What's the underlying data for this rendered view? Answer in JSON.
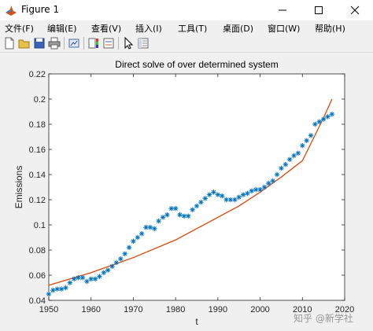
{
  "window": {
    "title": "Figure 1",
    "icon": "matlab-icon"
  },
  "window_controls": [
    "minimize-icon",
    "maximize-icon",
    "close-icon"
  ],
  "menu": [
    "文件(F)",
    "编辑(E)",
    "查看(V)",
    "插入(I)",
    "工具(T)",
    "桌面(D)",
    "窗口(W)",
    "帮助(H)"
  ],
  "toolbar": [
    "new-figure-icon",
    "open-file-icon",
    "save-icon",
    "print-icon",
    "link-plot-icon",
    "colorbar-icon",
    "legend-icon",
    "pointer-icon",
    "property-editor-icon"
  ],
  "watermark": "知乎 @新学社",
  "chart_data": {
    "type": "scatter",
    "title": "Direct solve of over determined system",
    "xlabel": "t",
    "ylabel": "Emissions",
    "xlim": [
      1950,
      2020
    ],
    "ylim": [
      0.04,
      0.22
    ],
    "xticks": [
      "1950",
      "1960",
      "1970",
      "1980",
      "1990",
      "2000",
      "2010",
      "2020"
    ],
    "yticks": [
      "0.04",
      "0.06",
      "0.08",
      "0.1",
      "0.12",
      "0.14",
      "0.16",
      "0.18",
      "0.2",
      "0.22"
    ],
    "grid": false,
    "series": [
      {
        "kind": "markers",
        "marker": "asterisk",
        "color": "#0072bd",
        "x": [
          1950,
          1951,
          1952,
          1953,
          1954,
          1955,
          1956,
          1957,
          1958,
          1959,
          1960,
          1961,
          1962,
          1963,
          1964,
          1965,
          1966,
          1967,
          1968,
          1969,
          1970,
          1971,
          1972,
          1973,
          1974,
          1975,
          1976,
          1977,
          1978,
          1979,
          1980,
          1981,
          1982,
          1983,
          1984,
          1985,
          1986,
          1987,
          1988,
          1989,
          1990,
          1991,
          1992,
          1993,
          1994,
          1995,
          1996,
          1997,
          1998,
          1999,
          2000,
          2001,
          2002,
          2003,
          2004,
          2005,
          2006,
          2007,
          2008,
          2009,
          2010,
          2011,
          2012,
          2013,
          2014,
          2015,
          2016,
          2017
        ],
        "y": [
          0.045,
          0.048,
          0.049,
          0.049,
          0.05,
          0.054,
          0.057,
          0.058,
          0.058,
          0.055,
          0.057,
          0.057,
          0.059,
          0.062,
          0.064,
          0.067,
          0.07,
          0.073,
          0.077,
          0.082,
          0.087,
          0.09,
          0.093,
          0.098,
          0.098,
          0.097,
          0.103,
          0.106,
          0.108,
          0.113,
          0.113,
          0.108,
          0.107,
          0.107,
          0.112,
          0.115,
          0.118,
          0.121,
          0.124,
          0.126,
          0.124,
          0.123,
          0.12,
          0.12,
          0.12,
          0.122,
          0.124,
          0.125,
          0.127,
          0.128,
          0.128,
          0.13,
          0.133,
          0.135,
          0.14,
          0.145,
          0.148,
          0.152,
          0.155,
          0.157,
          0.163,
          0.167,
          0.171,
          0.18,
          0.182,
          0.184,
          0.186,
          0.188
        ]
      },
      {
        "kind": "line",
        "color": "#d95319",
        "model": "exponential",
        "x": [
          1950,
          1955,
          1960,
          1965,
          1970,
          1975,
          1980,
          1985,
          1990,
          1995,
          2000,
          2005,
          2010,
          2015,
          2017
        ],
        "y": [
          0.052,
          0.057,
          0.062,
          0.068,
          0.074,
          0.081,
          0.088,
          0.097,
          0.106,
          0.115,
          0.126,
          0.138,
          0.151,
          0.185,
          0.2
        ]
      }
    ]
  }
}
